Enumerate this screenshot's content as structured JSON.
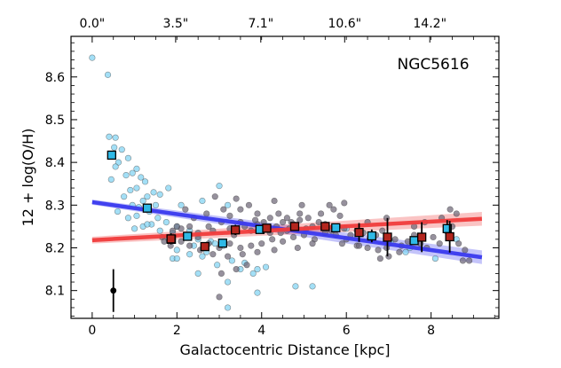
{
  "chart_data": {
    "type": "scatter",
    "title": "",
    "annotation": "NGC5616",
    "xlabel": "Galactocentric Distance [kpc]",
    "ylabel": "12 + log(O/H)",
    "xlim": [
      -0.5,
      9.6
    ],
    "ylim": [
      8.035,
      8.695
    ],
    "x_ticks": [
      {
        "v": 0,
        "label": "0"
      },
      {
        "v": 2,
        "label": "2"
      },
      {
        "v": 4,
        "label": "4"
      },
      {
        "v": 6,
        "label": "6"
      },
      {
        "v": 8,
        "label": "8"
      }
    ],
    "y_ticks": [
      {
        "v": 8.1,
        "label": "8.1"
      },
      {
        "v": 8.2,
        "label": "8.2"
      },
      {
        "v": 8.3,
        "label": "8.3"
      },
      {
        "v": 8.4,
        "label": "8.4"
      },
      {
        "v": 8.5,
        "label": "8.5"
      },
      {
        "v": 8.6,
        "label": "8.6"
      }
    ],
    "top_ticks": [
      {
        "v": 0.0,
        "label": "0.0\""
      },
      {
        "v": 1.97,
        "label": "3.5\""
      },
      {
        "v": 3.98,
        "label": "7.1\""
      },
      {
        "v": 5.96,
        "label": "10.6\""
      },
      {
        "v": 7.97,
        "label": "14.2\""
      }
    ],
    "colors": {
      "blue": "#2fb9e6",
      "red": "#b3261e",
      "blue_fit": "#3a3aee",
      "red_fit": "#f03c3c",
      "gray": "#6e6777",
      "light_blue": "#7fd3f2"
    },
    "series": [
      {
        "name": "spaxels-light-blue",
        "points": [
          [
            0.0,
            8.645
          ],
          [
            0.37,
            8.605
          ],
          [
            0.4,
            8.46
          ],
          [
            0.55,
            8.458
          ],
          [
            0.52,
            8.435
          ],
          [
            0.7,
            8.43
          ],
          [
            0.62,
            8.4
          ],
          [
            0.55,
            8.39
          ],
          [
            0.85,
            8.41
          ],
          [
            1.05,
            8.385
          ],
          [
            0.95,
            8.375
          ],
          [
            0.8,
            8.37
          ],
          [
            1.15,
            8.365
          ],
          [
            0.45,
            8.36
          ],
          [
            1.25,
            8.355
          ],
          [
            1.05,
            8.34
          ],
          [
            0.9,
            8.335
          ],
          [
            1.45,
            8.33
          ],
          [
            1.6,
            8.325
          ],
          [
            0.75,
            8.32
          ],
          [
            1.3,
            8.32
          ],
          [
            1.2,
            8.31
          ],
          [
            0.95,
            8.3
          ],
          [
            1.1,
            8.295
          ],
          [
            1.5,
            8.3
          ],
          [
            1.8,
            8.34
          ],
          [
            2.1,
            8.3
          ],
          [
            0.6,
            8.285
          ],
          [
            1.35,
            8.285
          ],
          [
            1.05,
            8.275
          ],
          [
            0.85,
            8.27
          ],
          [
            1.55,
            8.27
          ],
          [
            1.75,
            8.26
          ],
          [
            1.4,
            8.255
          ],
          [
            1.2,
            8.25
          ],
          [
            1.0,
            8.245
          ],
          [
            2.0,
            8.25
          ],
          [
            2.3,
            8.24
          ],
          [
            1.6,
            8.24
          ],
          [
            1.9,
            8.235
          ],
          [
            2.2,
            8.23
          ],
          [
            1.8,
            8.22
          ],
          [
            2.5,
            8.22
          ],
          [
            2.8,
            8.215
          ],
          [
            2.9,
            8.21
          ],
          [
            3.1,
            8.205
          ],
          [
            2.4,
            8.205
          ],
          [
            2.0,
            8.195
          ],
          [
            2.7,
            8.19
          ],
          [
            2.3,
            8.185
          ],
          [
            2.6,
            8.18
          ],
          [
            1.9,
            8.175
          ],
          [
            3.3,
            8.17
          ],
          [
            3.6,
            8.165
          ],
          [
            2.95,
            8.16
          ],
          [
            3.5,
            8.15
          ],
          [
            3.9,
            8.15
          ],
          [
            3.8,
            8.14
          ],
          [
            2.5,
            8.14
          ],
          [
            4.1,
            8.155
          ],
          [
            3.2,
            8.12
          ],
          [
            4.8,
            8.11
          ],
          [
            5.2,
            8.11
          ],
          [
            3.9,
            8.095
          ],
          [
            3.2,
            8.06
          ],
          [
            2.0,
            8.175
          ],
          [
            1.3,
            8.255
          ],
          [
            5.5,
            8.255
          ],
          [
            6.0,
            8.245
          ],
          [
            7.5,
            8.2
          ],
          [
            7.4,
            8.19
          ],
          [
            8.1,
            8.175
          ],
          [
            8.6,
            8.22
          ],
          [
            7.05,
            8.215
          ],
          [
            2.6,
            8.31
          ],
          [
            3.0,
            8.345
          ],
          [
            3.2,
            8.3
          ]
        ],
        "color": "#7fd3f2"
      },
      {
        "name": "spaxels-gray",
        "points": [
          [
            1.65,
            8.225
          ],
          [
            1.9,
            8.24
          ],
          [
            2.1,
            8.245
          ],
          [
            2.3,
            8.25
          ],
          [
            2.5,
            8.235
          ],
          [
            2.75,
            8.25
          ],
          [
            2.85,
            8.24
          ],
          [
            3.05,
            8.26
          ],
          [
            3.25,
            8.245
          ],
          [
            3.35,
            8.23
          ],
          [
            3.5,
            8.26
          ],
          [
            3.6,
            8.25
          ],
          [
            3.75,
            8.24
          ],
          [
            3.9,
            8.255
          ],
          [
            4.05,
            8.26
          ],
          [
            4.2,
            8.235
          ],
          [
            4.35,
            8.25
          ],
          [
            4.5,
            8.26
          ],
          [
            4.6,
            8.24
          ],
          [
            4.75,
            8.255
          ],
          [
            4.9,
            8.265
          ],
          [
            5.05,
            8.245
          ],
          [
            5.2,
            8.25
          ],
          [
            5.35,
            8.26
          ],
          [
            5.5,
            8.255
          ],
          [
            5.65,
            8.24
          ],
          [
            5.8,
            8.25
          ],
          [
            5.95,
            8.245
          ],
          [
            6.1,
            8.23
          ],
          [
            6.25,
            8.24
          ],
          [
            6.4,
            8.235
          ],
          [
            6.55,
            8.22
          ],
          [
            6.7,
            8.23
          ],
          [
            6.85,
            8.24
          ],
          [
            7.0,
            8.21
          ],
          [
            7.15,
            8.22
          ],
          [
            7.3,
            8.205
          ],
          [
            7.45,
            8.215
          ],
          [
            7.6,
            8.23
          ],
          [
            7.75,
            8.21
          ],
          [
            7.9,
            8.2
          ],
          [
            8.05,
            8.225
          ],
          [
            8.2,
            8.21
          ],
          [
            8.35,
            8.24
          ],
          [
            8.5,
            8.25
          ],
          [
            8.65,
            8.21
          ],
          [
            8.8,
            8.195
          ],
          [
            8.9,
            8.17
          ],
          [
            8.75,
            8.17
          ],
          [
            8.45,
            8.29
          ],
          [
            8.6,
            8.28
          ],
          [
            8.25,
            8.27
          ],
          [
            7.85,
            8.26
          ],
          [
            7.6,
            8.25
          ],
          [
            6.95,
            8.27
          ],
          [
            6.5,
            8.26
          ],
          [
            5.7,
            8.29
          ],
          [
            5.4,
            8.28
          ],
          [
            5.1,
            8.27
          ],
          [
            4.9,
            8.28
          ],
          [
            4.6,
            8.27
          ],
          [
            4.4,
            8.28
          ],
          [
            4.2,
            8.27
          ],
          [
            3.9,
            8.28
          ],
          [
            3.5,
            8.29
          ],
          [
            3.1,
            8.29
          ],
          [
            2.7,
            8.28
          ],
          [
            2.4,
            8.27
          ],
          [
            2.2,
            8.29
          ],
          [
            2.0,
            8.25
          ],
          [
            2.5,
            8.225
          ],
          [
            2.75,
            8.21
          ],
          [
            3.0,
            8.2
          ],
          [
            3.25,
            8.21
          ],
          [
            3.5,
            8.2
          ],
          [
            3.75,
            8.205
          ],
          [
            4.0,
            8.21
          ],
          [
            4.25,
            8.22
          ],
          [
            4.5,
            8.215
          ],
          [
            4.75,
            8.225
          ],
          [
            5.0,
            8.23
          ],
          [
            5.25,
            8.22
          ],
          [
            5.5,
            8.235
          ],
          [
            5.75,
            8.23
          ],
          [
            6.0,
            8.22
          ],
          [
            6.25,
            8.205
          ],
          [
            6.5,
            8.2
          ],
          [
            6.75,
            8.195
          ],
          [
            7.0,
            8.18
          ],
          [
            7.25,
            8.19
          ],
          [
            6.8,
            8.175
          ],
          [
            6.95,
            8.2
          ],
          [
            6.3,
            8.205
          ],
          [
            5.9,
            8.21
          ],
          [
            5.2,
            8.21
          ],
          [
            4.85,
            8.2
          ],
          [
            4.3,
            8.195
          ],
          [
            3.9,
            8.19
          ],
          [
            3.55,
            8.185
          ],
          [
            3.2,
            8.18
          ],
          [
            2.85,
            8.185
          ],
          [
            2.55,
            8.195
          ],
          [
            2.3,
            8.205
          ],
          [
            2.1,
            8.215
          ],
          [
            1.85,
            8.205
          ],
          [
            1.7,
            8.215
          ],
          [
            3.05,
            8.14
          ],
          [
            3.4,
            8.15
          ],
          [
            3.65,
            8.16
          ],
          [
            3.0,
            8.085
          ],
          [
            4.45,
            8.235
          ],
          [
            4.65,
            8.245
          ],
          [
            5.85,
            8.275
          ],
          [
            5.95,
            8.305
          ],
          [
            3.7,
            8.3
          ],
          [
            4.3,
            8.31
          ],
          [
            4.95,
            8.3
          ],
          [
            5.6,
            8.3
          ],
          [
            2.9,
            8.32
          ],
          [
            3.4,
            8.315
          ],
          [
            4.7,
            8.26
          ],
          [
            3.25,
            8.275
          ],
          [
            3.85,
            8.265
          ]
        ],
        "color": "#6e6777"
      },
      {
        "name": "binned-blue",
        "points": [
          [
            0.46,
            8.417,
            0.0
          ],
          [
            1.3,
            8.293,
            0.0
          ],
          [
            1.87,
            8.22,
            0.0
          ],
          [
            2.25,
            8.227,
            0.0
          ],
          [
            3.08,
            8.211,
            0.0
          ],
          [
            3.96,
            8.243,
            0.0
          ],
          [
            5.75,
            8.247,
            0.0
          ],
          [
            6.6,
            8.228,
            0.015
          ],
          [
            7.6,
            8.217,
            0.0
          ],
          [
            8.38,
            8.245,
            0.02
          ]
        ],
        "color": "#2fb9e6"
      },
      {
        "name": "binned-red",
        "points": [
          [
            1.86,
            8.221,
            0.013
          ],
          [
            2.66,
            8.203,
            0.008
          ],
          [
            3.38,
            8.242,
            0.012
          ],
          [
            4.12,
            8.246,
            0.006
          ],
          [
            4.78,
            8.25,
            0.006
          ],
          [
            5.5,
            8.25,
            0.008
          ],
          [
            6.3,
            8.236,
            0.022
          ],
          [
            6.97,
            8.225,
            0.045
          ],
          [
            7.78,
            8.225,
            0.035
          ],
          [
            8.44,
            8.226,
            0.037
          ]
        ],
        "color": "#b3261e"
      }
    ],
    "fits": [
      {
        "name": "blue-fit",
        "x0": 0.0,
        "y0": 8.307,
        "x1": 9.2,
        "y1": 8.178,
        "band_start": 0.006,
        "band_end": 0.016,
        "color": "#3a3aee"
      },
      {
        "name": "red-fit",
        "x0": 0.0,
        "y0": 8.218,
        "x1": 9.2,
        "y1": 8.268,
        "band_start": 0.008,
        "band_end": 0.016,
        "color": "#f03c3c"
      }
    ],
    "typical_error": {
      "x": 0.5,
      "y": 8.1,
      "err": 0.05
    }
  }
}
